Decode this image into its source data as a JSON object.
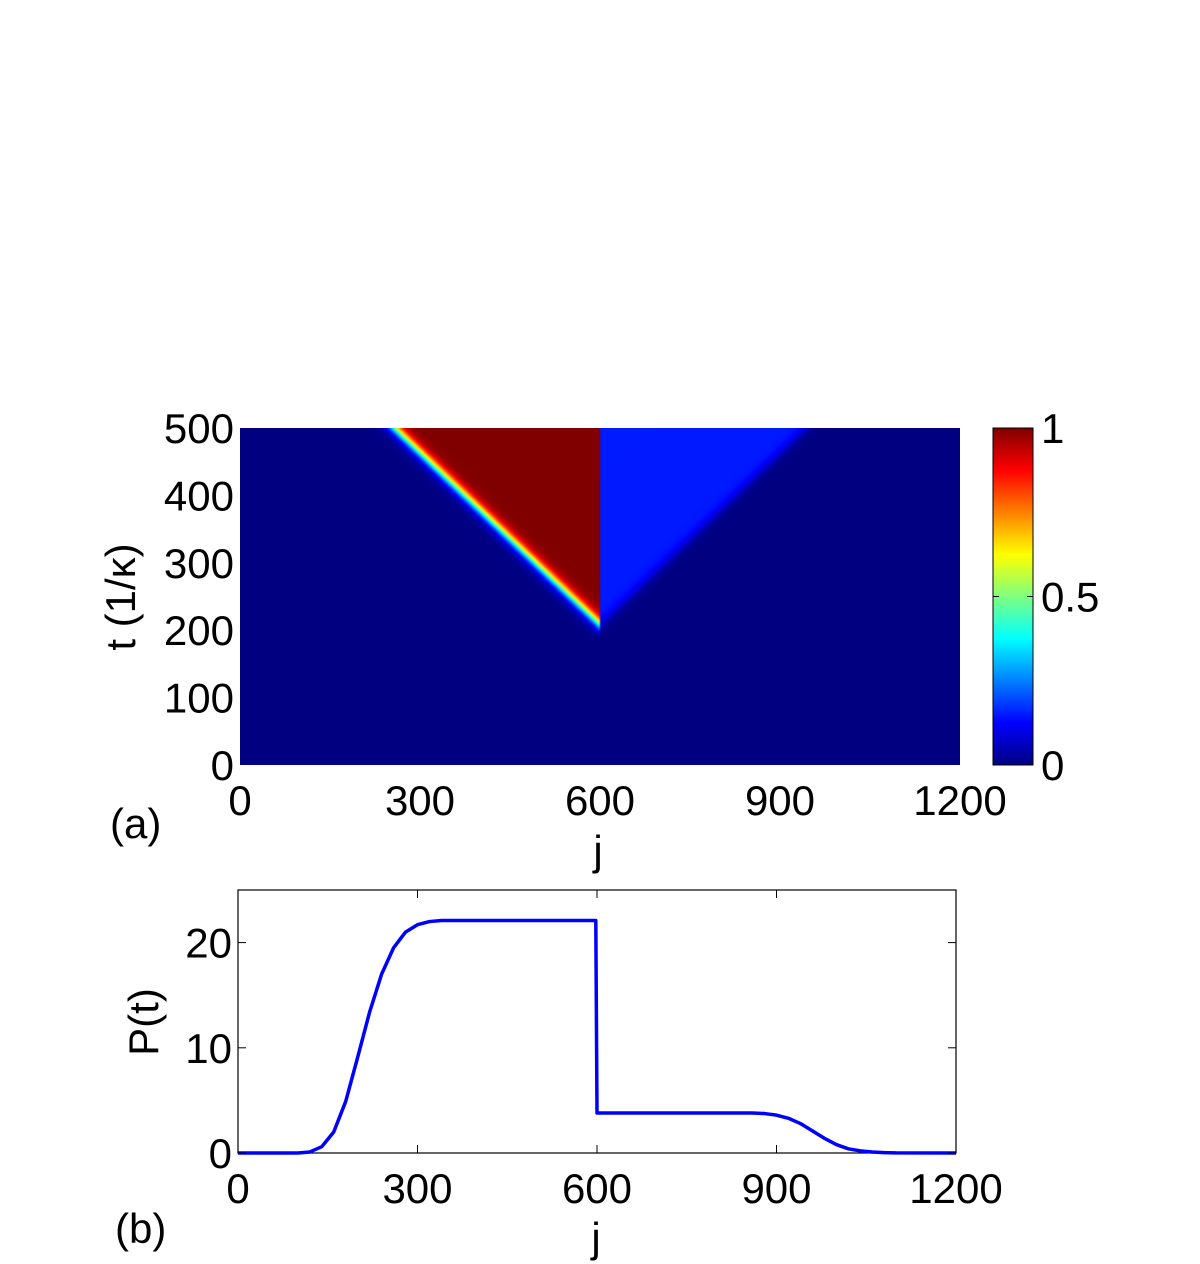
{
  "chart_data": [
    {
      "type": "heatmap",
      "panel_label": "(a)",
      "xlabel": "j",
      "ylabel": "t (1/κ)",
      "xlim": [
        0,
        1200
      ],
      "ylim": [
        0,
        500
      ],
      "xticks": [
        "0",
        "300",
        "600",
        "900",
        "1200"
      ],
      "yticks": [
        "0",
        "100",
        "200",
        "300",
        "400",
        "500"
      ],
      "colorbar": {
        "min": 0,
        "max": 1,
        "ticks": [
          "0",
          "0.5",
          "1"
        ],
        "colormap": "jet"
      },
      "features": {
        "left_front": {
          "origin_j": 600,
          "onset_t": 190,
          "slope_t_per_j": 0.85,
          "plateau_value": 1.0,
          "width_j": 45
        },
        "right_front": {
          "origin_j": 600,
          "onset_t": 190,
          "slope_t_per_j": 0.85,
          "plateau_value": 0.15,
          "width_j": 40
        }
      }
    },
    {
      "type": "line",
      "panel_label": "(b)",
      "xlabel": "j",
      "ylabel": "P(t)",
      "xlim": [
        0,
        1200
      ],
      "ylim": [
        0,
        25
      ],
      "xticks": [
        "0",
        "300",
        "600",
        "900",
        "1200"
      ],
      "yticks": [
        "0",
        "10",
        "20"
      ],
      "series": [
        {
          "color": "#0000ff",
          "x": [
            0,
            100,
            120,
            140,
            160,
            180,
            200,
            220,
            240,
            260,
            280,
            300,
            320,
            340,
            360,
            400,
            500,
            598,
            600,
            602,
            700,
            800,
            860,
            880,
            900,
            920,
            940,
            960,
            980,
            1000,
            1020,
            1040,
            1060,
            1080,
            1100,
            1200
          ],
          "y": [
            0,
            0,
            0.1,
            0.6,
            2.0,
            4.9,
            9.1,
            13.4,
            17.0,
            19.5,
            21.0,
            21.7,
            22.0,
            22.1,
            22.1,
            22.1,
            22.1,
            22.1,
            3.8,
            3.8,
            3.8,
            3.8,
            3.8,
            3.75,
            3.6,
            3.3,
            2.8,
            2.1,
            1.4,
            0.8,
            0.4,
            0.2,
            0.1,
            0.04,
            0.01,
            0
          ]
        }
      ]
    }
  ]
}
